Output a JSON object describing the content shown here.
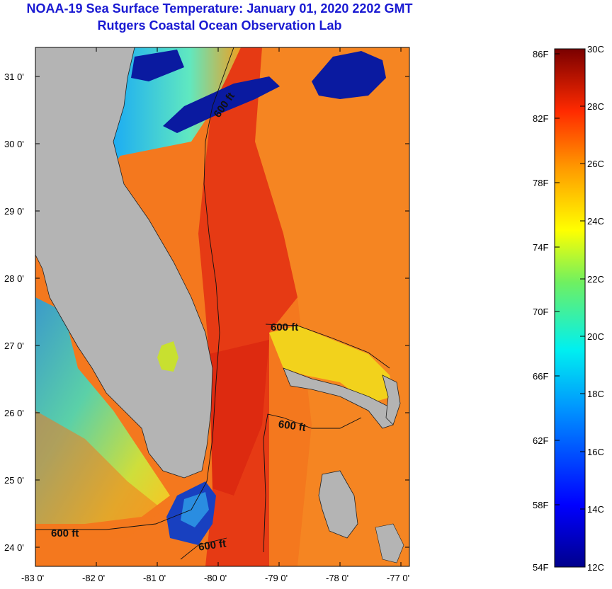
{
  "title": {
    "line1": "NOAA-19 Sea Surface Temperature:  January 01, 2020 2202 GMT",
    "line2": "Rutgers Coastal Ocean Observation Lab"
  },
  "map": {
    "lat_labels": [
      "31 0'",
      "30 0'",
      "29 0'",
      "28 0'",
      "27 0'",
      "26 0'",
      "25 0'",
      "24 0'"
    ],
    "lon_labels": [
      "-83 0'",
      "-82 0'",
      "-81 0'",
      "-80 0'",
      "-79 0'",
      "-78 0'",
      "-77 0'"
    ],
    "contour_label": "600 ft",
    "colors": {
      "land": "#b4b4b4",
      "gulf_stream": "#e63a14",
      "warm_ocean": "#f4781e",
      "shelf_cool": "#33cde0",
      "cloud_blue": "#0a1aa0"
    }
  },
  "colorbar": {
    "fahrenheit_labels": [
      "86F",
      "82F",
      "78F",
      "74F",
      "70F",
      "66F",
      "62F",
      "58F",
      "54F"
    ],
    "celsius_labels": [
      "30C",
      "28C",
      "26C",
      "24C",
      "22C",
      "20C",
      "18C",
      "16C",
      "14C",
      "12C"
    ]
  }
}
